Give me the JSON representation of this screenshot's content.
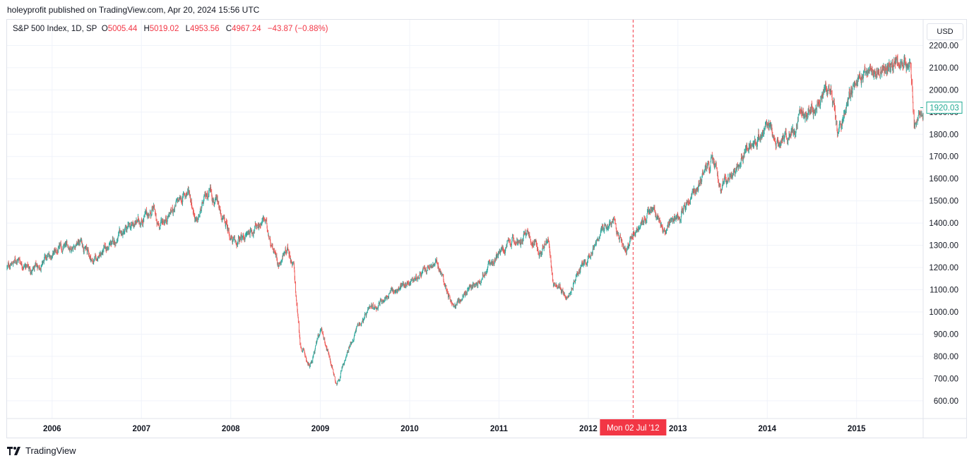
{
  "header": {
    "published_by": "holeyprofit published on TradingView.com, Apr 20, 2024 15:56 UTC"
  },
  "legend": {
    "symbol": "S&P 500 Index, 1D, SP",
    "open_label": "O",
    "open_value": "5005.44",
    "high_label": "H",
    "high_value": "5019.02",
    "low_label": "L",
    "low_value": "4953.56",
    "close_label": "C",
    "close_value": "4967.24",
    "change": "−43.87 (−0.88%)"
  },
  "currency_button": "USD",
  "footer": {
    "brand": "TradingView"
  },
  "colors": {
    "up": "#26a69a",
    "down": "#ef5350",
    "last_price": "#22ab94",
    "crosshair": "#f23645",
    "grid": "#f0f3fa",
    "text": "#131722"
  },
  "chart_data": {
    "type": "candlestick",
    "symbol": "S&P 500 Index",
    "interval": "1D",
    "x_range": [
      "2005-07-01",
      "2015-09-30"
    ],
    "ylim": [
      520,
      2230
    ],
    "y_ticks": [
      "600.00",
      "700.00",
      "800.00",
      "900.00",
      "1000.00",
      "1100.00",
      "1200.00",
      "1300.00",
      "1400.00",
      "1500.00",
      "1600.00",
      "1700.00",
      "1800.00",
      "1900.00",
      "2000.00",
      "2100.00",
      "2200.00"
    ],
    "x_ticks": [
      "2006",
      "2007",
      "2008",
      "2009",
      "2010",
      "2011",
      "2012",
      "2013",
      "2014",
      "2015"
    ],
    "last_price": "1920.03",
    "crosshair_label": "Mon 02 Jul '12",
    "crosshair_date": "2012-07-02",
    "grid": true,
    "price_path": [
      [
        "2005-07-01",
        1200
      ],
      [
        "2005-08-15",
        1240
      ],
      [
        "2005-10-15",
        1180
      ],
      [
        "2006-01-01",
        1260
      ],
      [
        "2006-05-01",
        1320
      ],
      [
        "2006-06-15",
        1230
      ],
      [
        "2006-12-31",
        1420
      ],
      [
        "2007-02-25",
        1460
      ],
      [
        "2007-03-05",
        1380
      ],
      [
        "2007-07-15",
        1550
      ],
      [
        "2007-08-15",
        1400
      ],
      [
        "2007-10-09",
        1565
      ],
      [
        "2007-11-25",
        1420
      ],
      [
        "2008-01-20",
        1300
      ],
      [
        "2008-05-15",
        1420
      ],
      [
        "2008-07-15",
        1220
      ],
      [
        "2008-08-20",
        1300
      ],
      [
        "2008-09-15",
        1200
      ],
      [
        "2008-10-10",
        850
      ],
      [
        "2008-11-20",
        750
      ],
      [
        "2009-01-05",
        930
      ],
      [
        "2009-03-09",
        677
      ],
      [
        "2009-06-01",
        940
      ],
      [
        "2009-09-15",
        1060
      ],
      [
        "2010-01-15",
        1150
      ],
      [
        "2010-04-23",
        1215
      ],
      [
        "2010-07-01",
        1020
      ],
      [
        "2010-12-31",
        1258
      ],
      [
        "2011-04-30",
        1360
      ],
      [
        "2011-06-15",
        1270
      ],
      [
        "2011-07-20",
        1340
      ],
      [
        "2011-08-10",
        1120
      ],
      [
        "2011-10-04",
        1080
      ],
      [
        "2012-01-01",
        1260
      ],
      [
        "2012-04-01",
        1410
      ],
      [
        "2012-06-04",
        1280
      ],
      [
        "2012-09-14",
        1470
      ],
      [
        "2012-11-15",
        1355
      ],
      [
        "2013-01-01",
        1430
      ],
      [
        "2013-05-20",
        1680
      ],
      [
        "2013-06-24",
        1570
      ],
      [
        "2013-12-31",
        1848
      ],
      [
        "2014-02-03",
        1740
      ],
      [
        "2014-09-18",
        2010
      ],
      [
        "2014-10-15",
        1820
      ],
      [
        "2015-01-01",
        2060
      ],
      [
        "2015-05-20",
        2130
      ],
      [
        "2015-08-10",
        2100
      ],
      [
        "2015-08-24",
        1867
      ],
      [
        "2015-09-30",
        1920
      ]
    ]
  }
}
